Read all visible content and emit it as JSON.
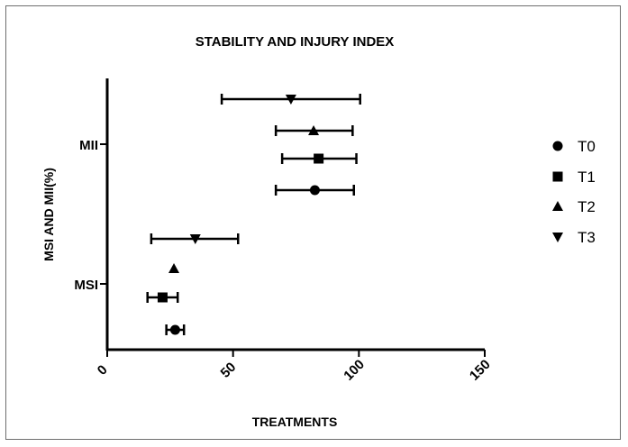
{
  "chart_data": {
    "type": "scatter",
    "title": "STABILITY AND INJURY INDEX",
    "xlabel": "TREATMENTS",
    "ylabel": "MSI AND MII(%)",
    "xlim": [
      0,
      150
    ],
    "x_ticks": [
      "0",
      "50",
      "100",
      "150"
    ],
    "categories": [
      "MII",
      "MSI"
    ],
    "legend_position": "right",
    "series": [
      {
        "name": "T0",
        "marker": "circle",
        "values": [
          {
            "category": "MII",
            "x": 82.5,
            "low": 67,
            "high": 98
          },
          {
            "category": "MSI",
            "x": 27,
            "low": 23.5,
            "high": 30.5
          }
        ]
      },
      {
        "name": "T1",
        "marker": "square",
        "values": [
          {
            "category": "MII",
            "x": 84,
            "low": 69.5,
            "high": 99
          },
          {
            "category": "MSI",
            "x": 22,
            "low": 16,
            "high": 28
          }
        ]
      },
      {
        "name": "T2",
        "marker": "triangle-up",
        "values": [
          {
            "category": "MII",
            "x": 82,
            "low": 67,
            "high": 97.5
          },
          {
            "category": "MSI",
            "x": 26.5,
            "low": 26.5,
            "high": 26.5
          }
        ]
      },
      {
        "name": "T3",
        "marker": "triangle-down",
        "values": [
          {
            "category": "MII",
            "x": 73,
            "low": 45.5,
            "high": 100.5
          },
          {
            "category": "MSI",
            "x": 35,
            "low": 17.5,
            "high": 52
          }
        ]
      }
    ],
    "colors": {
      "marker": "#000000",
      "axis": "#000000",
      "frame": "#6e6e6e"
    }
  }
}
